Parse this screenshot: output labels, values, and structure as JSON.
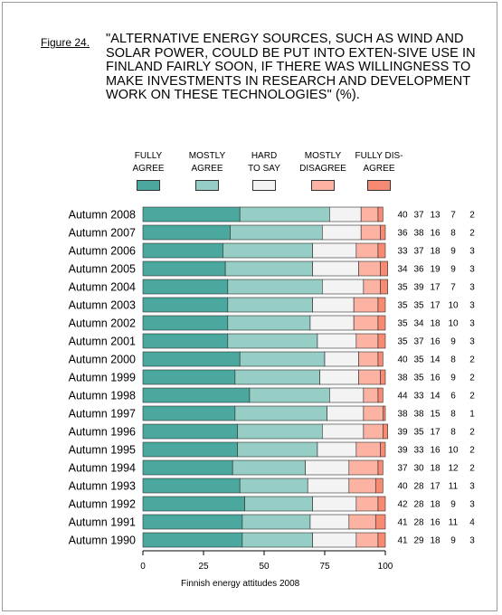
{
  "figure_label": "Figure 24.",
  "title": "\"ALTERNATIVE ENERGY SOURCES, SUCH AS WIND AND SOLAR POWER, COULD BE PUT INTO EXTEN-SIVE USE IN FINLAND FAIRLY SOON, IF THERE WAS WILLINGNESS TO MAKE INVESTMENTS IN RESEARCH AND DEVELOPMENT WORK ON THESE TECHNOLOGIES\" (%).",
  "footer": "Finnish energy attitudes 2008",
  "legend": [
    {
      "label": "FULLY\nAGREE",
      "color": "#4ba89f"
    },
    {
      "label": "MOSTLY\nAGREE",
      "color": "#96cdc5"
    },
    {
      "label": "HARD\nTO SAY",
      "color": "#f3f3f3"
    },
    {
      "label": "MOSTLY\nDISAGREE",
      "color": "#fcb3a3"
    },
    {
      "label": "FULLY DIS-\nAGREE",
      "color": "#f78a73"
    }
  ],
  "chart_data": {
    "type": "bar",
    "orientation": "horizontal",
    "stacked": true,
    "categories": [
      "Autumn 2008",
      "Autumn 2007",
      "Autumn 2006",
      "Autumn 2005",
      "Autumn 2004",
      "Autumn 2003",
      "Autumn 2002",
      "Autumn 2001",
      "Autumn 2000",
      "Autumn 1999",
      "Autumn 1998",
      "Autumn 1997",
      "Autumn 1996",
      "Autumn 1995",
      "Autumn 1994",
      "Autumn 1993",
      "Autumn 1992",
      "Autumn 1991",
      "Autumn 1990"
    ],
    "series": [
      {
        "name": "FULLY AGREE",
        "color": "#4ba89f",
        "values": [
          40,
          36,
          33,
          34,
          35,
          35,
          35,
          35,
          40,
          38,
          44,
          38,
          39,
          39,
          37,
          40,
          42,
          41,
          41
        ]
      },
      {
        "name": "MOSTLY AGREE",
        "color": "#96cdc5",
        "values": [
          37,
          38,
          37,
          36,
          39,
          35,
          34,
          37,
          35,
          35,
          33,
          38,
          35,
          33,
          30,
          28,
          28,
          28,
          29
        ]
      },
      {
        "name": "HARD TO SAY",
        "color": "#f3f3f3",
        "values": [
          13,
          16,
          18,
          19,
          17,
          17,
          18,
          16,
          14,
          16,
          14,
          15,
          17,
          16,
          18,
          17,
          18,
          16,
          18
        ]
      },
      {
        "name": "MOSTLY DISAGREE",
        "color": "#fcb3a3",
        "values": [
          7,
          8,
          9,
          9,
          7,
          10,
          10,
          9,
          8,
          9,
          6,
          8,
          8,
          10,
          12,
          11,
          9,
          11,
          9
        ]
      },
      {
        "name": "FULLY DISAGREE",
        "color": "#f78a73",
        "values": [
          2,
          2,
          3,
          3,
          3,
          3,
          3,
          3,
          2,
          2,
          2,
          1,
          2,
          2,
          2,
          3,
          3,
          4,
          3
        ]
      }
    ],
    "xlim": [
      0,
      100
    ],
    "xticks": [
      0,
      25,
      50,
      75,
      100
    ],
    "grid": false,
    "legend_position": "top"
  }
}
